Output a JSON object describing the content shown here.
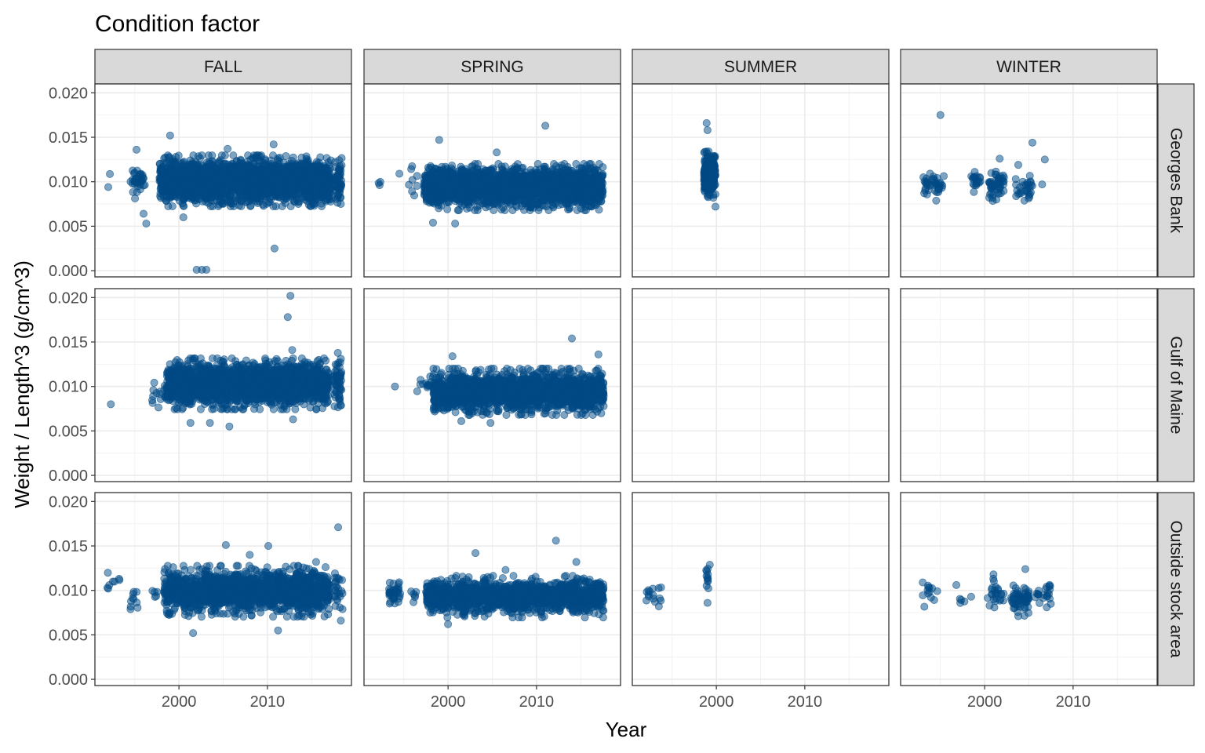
{
  "chart_data": {
    "type": "scatter",
    "title": "Condition factor",
    "xlabel": "Year",
    "ylabel": "Weight / Length^3 (g/cm^3)",
    "xlim": [
      1990.5,
      2019.5
    ],
    "ylim": [
      -0.0007,
      0.021
    ],
    "x_ticks": [
      2000,
      2010
    ],
    "y_ticks": [
      0.0,
      0.005,
      0.01,
      0.015,
      0.02
    ],
    "y_tick_labels": [
      "0.000",
      "0.005",
      "0.010",
      "0.015",
      "0.020"
    ],
    "grid": true,
    "point_color": "#004A86",
    "point_alpha": 0.5,
    "columns": [
      "FALL",
      "SPRING",
      "SUMMER",
      "WINTER"
    ],
    "rows": [
      "Georges Bank",
      "Gulf of Maine",
      "Outside stock area"
    ],
    "panels": [
      {
        "row": "Georges Bank",
        "column": "FALL",
        "clusters": [
          {
            "x": [
              1992.0,
              1992.3
            ],
            "y_center": 0.0107,
            "y_sd": 0.0005,
            "n": 2
          },
          {
            "x": [
              1994.5,
              1996.2
            ],
            "y_center": 0.0102,
            "y_sd": 0.0008,
            "n": 35
          },
          {
            "x": [
              1997.8,
              2017.2
            ],
            "y_center": 0.0101,
            "y_sd": 0.0011,
            "n": 2600
          },
          {
            "x": [
              2017.6,
              2018.4
            ],
            "y_center": 0.0101,
            "y_sd": 0.001,
            "n": 60
          }
        ],
        "points": [
          {
            "x": 1999.0,
            "y": 0.0152
          },
          {
            "x": 1995.2,
            "y": 0.0136
          },
          {
            "x": 1996.0,
            "y": 0.0064
          },
          {
            "x": 1996.3,
            "y": 0.0053
          },
          {
            "x": 2002.0,
            "y": 0.0001
          },
          {
            "x": 2002.6,
            "y": 0.0001
          },
          {
            "x": 2003.1,
            "y": 0.0001
          },
          {
            "x": 2010.8,
            "y": 0.0025
          },
          {
            "x": 2010.7,
            "y": 0.0142
          },
          {
            "x": 2005.5,
            "y": 0.0137
          },
          {
            "x": 2000.5,
            "y": 0.006
          }
        ]
      },
      {
        "row": "Georges Bank",
        "column": "SPRING",
        "clusters": [
          {
            "x": [
              1992.0,
              1992.4
            ],
            "y_center": 0.0097,
            "y_sd": 0.0004,
            "n": 3
          },
          {
            "x": [
              1995.5,
              1996.6
            ],
            "y_center": 0.0098,
            "y_sd": 0.0008,
            "n": 8
          },
          {
            "x": [
              1997.3,
              2017.5
            ],
            "y_center": 0.0094,
            "y_sd": 0.001,
            "n": 2400
          }
        ],
        "points": [
          {
            "x": 2011.0,
            "y": 0.0163
          },
          {
            "x": 1999.0,
            "y": 0.0147
          },
          {
            "x": 1998.3,
            "y": 0.0054
          },
          {
            "x": 2000.8,
            "y": 0.0053
          },
          {
            "x": 2005.5,
            "y": 0.0133
          },
          {
            "x": 1994.5,
            "y": 0.0109
          }
        ]
      },
      {
        "row": "Georges Bank",
        "column": "SUMMER",
        "clusters": [
          {
            "x": [
              1998.6,
              1999.9
            ],
            "y_center": 0.0108,
            "y_sd": 0.001,
            "n": 280
          }
        ],
        "points": [
          {
            "x": 1998.9,
            "y": 0.0166
          },
          {
            "x": 1999.0,
            "y": 0.0158
          },
          {
            "x": 1999.9,
            "y": 0.0072
          }
        ]
      },
      {
        "row": "Georges Bank",
        "column": "WINTER",
        "clusters": [
          {
            "x": [
              1993.0,
              1995.4
            ],
            "y_center": 0.0097,
            "y_sd": 0.0007,
            "n": 40
          },
          {
            "x": [
              1998.3,
              1999.7
            ],
            "y_center": 0.0101,
            "y_sd": 0.0005,
            "n": 20
          },
          {
            "x": [
              2000.5,
              2002.2
            ],
            "y_center": 0.0097,
            "y_sd": 0.0009,
            "n": 50
          },
          {
            "x": [
              2003.5,
              2005.5
            ],
            "y_center": 0.0092,
            "y_sd": 0.0008,
            "n": 30
          }
        ],
        "points": [
          {
            "x": 1995.0,
            "y": 0.0175
          },
          {
            "x": 2005.4,
            "y": 0.0144
          },
          {
            "x": 2006.8,
            "y": 0.0125
          },
          {
            "x": 2003.8,
            "y": 0.0119
          },
          {
            "x": 2001.7,
            "y": 0.0126
          },
          {
            "x": 2006.5,
            "y": 0.0097
          }
        ]
      },
      {
        "row": "Gulf of Maine",
        "column": "FALL",
        "clusters": [
          {
            "x": [
              1996.8,
              1998.5
            ],
            "y_center": 0.0092,
            "y_sd": 0.0006,
            "n": 14
          },
          {
            "x": [
              1998.6,
              2016.9
            ],
            "y_center": 0.0103,
            "y_sd": 0.0011,
            "n": 2100
          },
          {
            "x": [
              2017.5,
              2018.4
            ],
            "y_center": 0.0104,
            "y_sd": 0.0013,
            "n": 60
          }
        ],
        "points": [
          {
            "x": 1992.3,
            "y": 0.008
          },
          {
            "x": 2012.6,
            "y": 0.0202
          },
          {
            "x": 2012.3,
            "y": 0.0178
          },
          {
            "x": 2012.8,
            "y": 0.0141
          },
          {
            "x": 2001.3,
            "y": 0.0059
          },
          {
            "x": 2005.7,
            "y": 0.0055
          },
          {
            "x": 2003.5,
            "y": 0.0059
          },
          {
            "x": 2012.9,
            "y": 0.0063
          }
        ]
      },
      {
        "row": "Gulf of Maine",
        "column": "SPRING",
        "clusters": [
          {
            "x": [
              1996.5,
              1998.2
            ],
            "y_center": 0.0102,
            "y_sd": 0.0004,
            "n": 12
          },
          {
            "x": [
              1998.3,
              2017.6
            ],
            "y_center": 0.0094,
            "y_sd": 0.001,
            "n": 1900
          }
        ],
        "points": [
          {
            "x": 1994.0,
            "y": 0.01
          },
          {
            "x": 2014.0,
            "y": 0.0154
          },
          {
            "x": 2017.0,
            "y": 0.0136
          },
          {
            "x": 2001.5,
            "y": 0.0061
          },
          {
            "x": 2004.8,
            "y": 0.0059
          },
          {
            "x": 2000.5,
            "y": 0.0134
          }
        ]
      },
      {
        "row": "Gulf of Maine",
        "column": "SUMMER",
        "clusters": [],
        "points": []
      },
      {
        "row": "Gulf of Maine",
        "column": "WINTER",
        "clusters": [],
        "points": []
      },
      {
        "row": "Outside stock area",
        "column": "FALL",
        "clusters": [
          {
            "x": [
              1991.8,
              1993.3
            ],
            "y_center": 0.0105,
            "y_sd": 0.0006,
            "n": 8
          },
          {
            "x": [
              1994.5,
              1995.5
            ],
            "y_center": 0.0092,
            "y_sd": 0.0006,
            "n": 10
          },
          {
            "x": [
              1997.0,
              1997.6
            ],
            "y_center": 0.01,
            "y_sd": 0.0006,
            "n": 5
          },
          {
            "x": [
              1998.3,
              2017.0
            ],
            "y_center": 0.0099,
            "y_sd": 0.0011,
            "n": 1700
          },
          {
            "x": [
              2017.6,
              2018.5
            ],
            "y_center": 0.0098,
            "y_sd": 0.0012,
            "n": 25
          }
        ],
        "points": [
          {
            "x": 2018.0,
            "y": 0.0171
          },
          {
            "x": 2005.3,
            "y": 0.0151
          },
          {
            "x": 2010.1,
            "y": 0.015
          },
          {
            "x": 2001.6,
            "y": 0.0052
          },
          {
            "x": 2011.2,
            "y": 0.0055
          },
          {
            "x": 2018.3,
            "y": 0.0066
          },
          {
            "x": 2015.5,
            "y": 0.0132
          },
          {
            "x": 2008.0,
            "y": 0.014
          }
        ]
      },
      {
        "row": "Outside stock area",
        "column": "SPRING",
        "clusters": [
          {
            "x": [
              1993.3,
              1994.6
            ],
            "y_center": 0.0097,
            "y_sd": 0.0006,
            "n": 35
          },
          {
            "x": [
              1995.7,
              1996.4
            ],
            "y_center": 0.0096,
            "y_sd": 0.0005,
            "n": 6
          },
          {
            "x": [
              1997.5,
              2017.6
            ],
            "y_center": 0.0093,
            "y_sd": 0.0009,
            "n": 1400
          }
        ],
        "points": [
          {
            "x": 2012.2,
            "y": 0.0156
          },
          {
            "x": 2003.1,
            "y": 0.0142
          },
          {
            "x": 2014.5,
            "y": 0.0132
          },
          {
            "x": 2006.5,
            "y": 0.0123
          },
          {
            "x": 2000.0,
            "y": 0.0062
          }
        ]
      },
      {
        "row": "Outside stock area",
        "column": "SUMMER",
        "clusters": [
          {
            "x": [
              1992.0,
              1993.8
            ],
            "y_center": 0.0096,
            "y_sd": 0.0006,
            "n": 14
          },
          {
            "x": [
              1998.8,
              1999.3
            ],
            "y_center": 0.011,
            "y_sd": 0.0009,
            "n": 12
          }
        ],
        "points": [
          {
            "x": 1999.0,
            "y": 0.0086
          },
          {
            "x": 1993.5,
            "y": 0.0082
          }
        ]
      },
      {
        "row": "Outside stock area",
        "column": "WINTER",
        "clusters": [
          {
            "x": [
              1993.0,
              1994.8
            ],
            "y_center": 0.0096,
            "y_sd": 0.0006,
            "n": 12
          },
          {
            "x": [
              1997.0,
              1999.5
            ],
            "y_center": 0.0096,
            "y_sd": 0.0006,
            "n": 5
          },
          {
            "x": [
              2000.3,
              2002.2
            ],
            "y_center": 0.0094,
            "y_sd": 0.0008,
            "n": 25
          },
          {
            "x": [
              2003.0,
              2005.0
            ],
            "y_center": 0.009,
            "y_sd": 0.0008,
            "n": 60
          },
          {
            "x": [
              2005.5,
              2007.5
            ],
            "y_center": 0.0096,
            "y_sd": 0.0006,
            "n": 22
          }
        ],
        "points": [
          {
            "x": 2004.6,
            "y": 0.0124
          },
          {
            "x": 1993.0,
            "y": 0.0109
          },
          {
            "x": 1996.8,
            "y": 0.0106
          },
          {
            "x": 2003.8,
            "y": 0.0071
          },
          {
            "x": 2001.0,
            "y": 0.0118
          }
        ]
      }
    ]
  }
}
